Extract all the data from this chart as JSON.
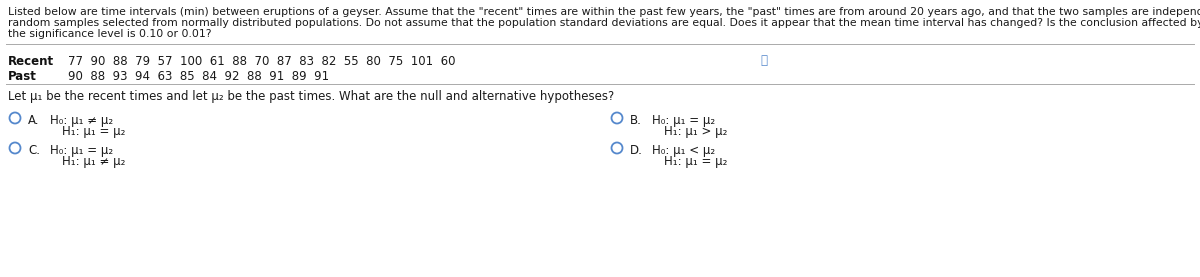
{
  "bg_color": "#ffffff",
  "dark_color": "#1a1a1a",
  "blue_color": "#2255aa",
  "bold_color": "#111111",
  "para_text_line1": "Listed below are time intervals (min) between eruptions of a geyser. Assume that the \"recent\" times are within the past few years, the \"past\" times are from around 20 years ago, and that the two samples are independent simple",
  "para_text_line2": "random samples selected from normally distributed populations. Do not assume that the population standard deviations are equal. Does it appear that the mean time interval has changed? Is the conclusion affected by whether",
  "para_text_line3": "the significance level is 0.10 or 0.01?",
  "recent_label": "Recent",
  "recent_data": "77  90  88  79  57  100  61  88  70  87  83  82  55  80  75  101  60",
  "past_label": "Past",
  "past_data": "90  88  93  94  63  85  84  92  88  91  89  91",
  "question_text": "Let μ₁ be the recent times and let μ₂ be the past times. What are the null and alternative hypotheses?",
  "option_A_label": "A.",
  "option_A_line1": "H₀: μ₁ ≠ μ₂",
  "option_A_line2": "H₁: μ₁ = μ₂",
  "option_B_label": "B.",
  "option_B_line1": "H₀: μ₁ = μ₂",
  "option_B_line2": "H₁: μ₁ > μ₂",
  "option_C_label": "C.",
  "option_C_line1": "H₀: μ₁ = μ₂",
  "option_C_line2": "H₁: μ₁ ≠ μ₂",
  "option_D_label": "D.",
  "option_D_line1": "H₀: μ₁ < μ₂",
  "option_D_line2": "H₁: μ₁ = μ₂",
  "font_size_para": 7.8,
  "font_size_data": 8.5,
  "font_size_question": 8.5,
  "font_size_option": 8.5,
  "circle_color": "#5588cc",
  "icon_color": "#5588cc"
}
